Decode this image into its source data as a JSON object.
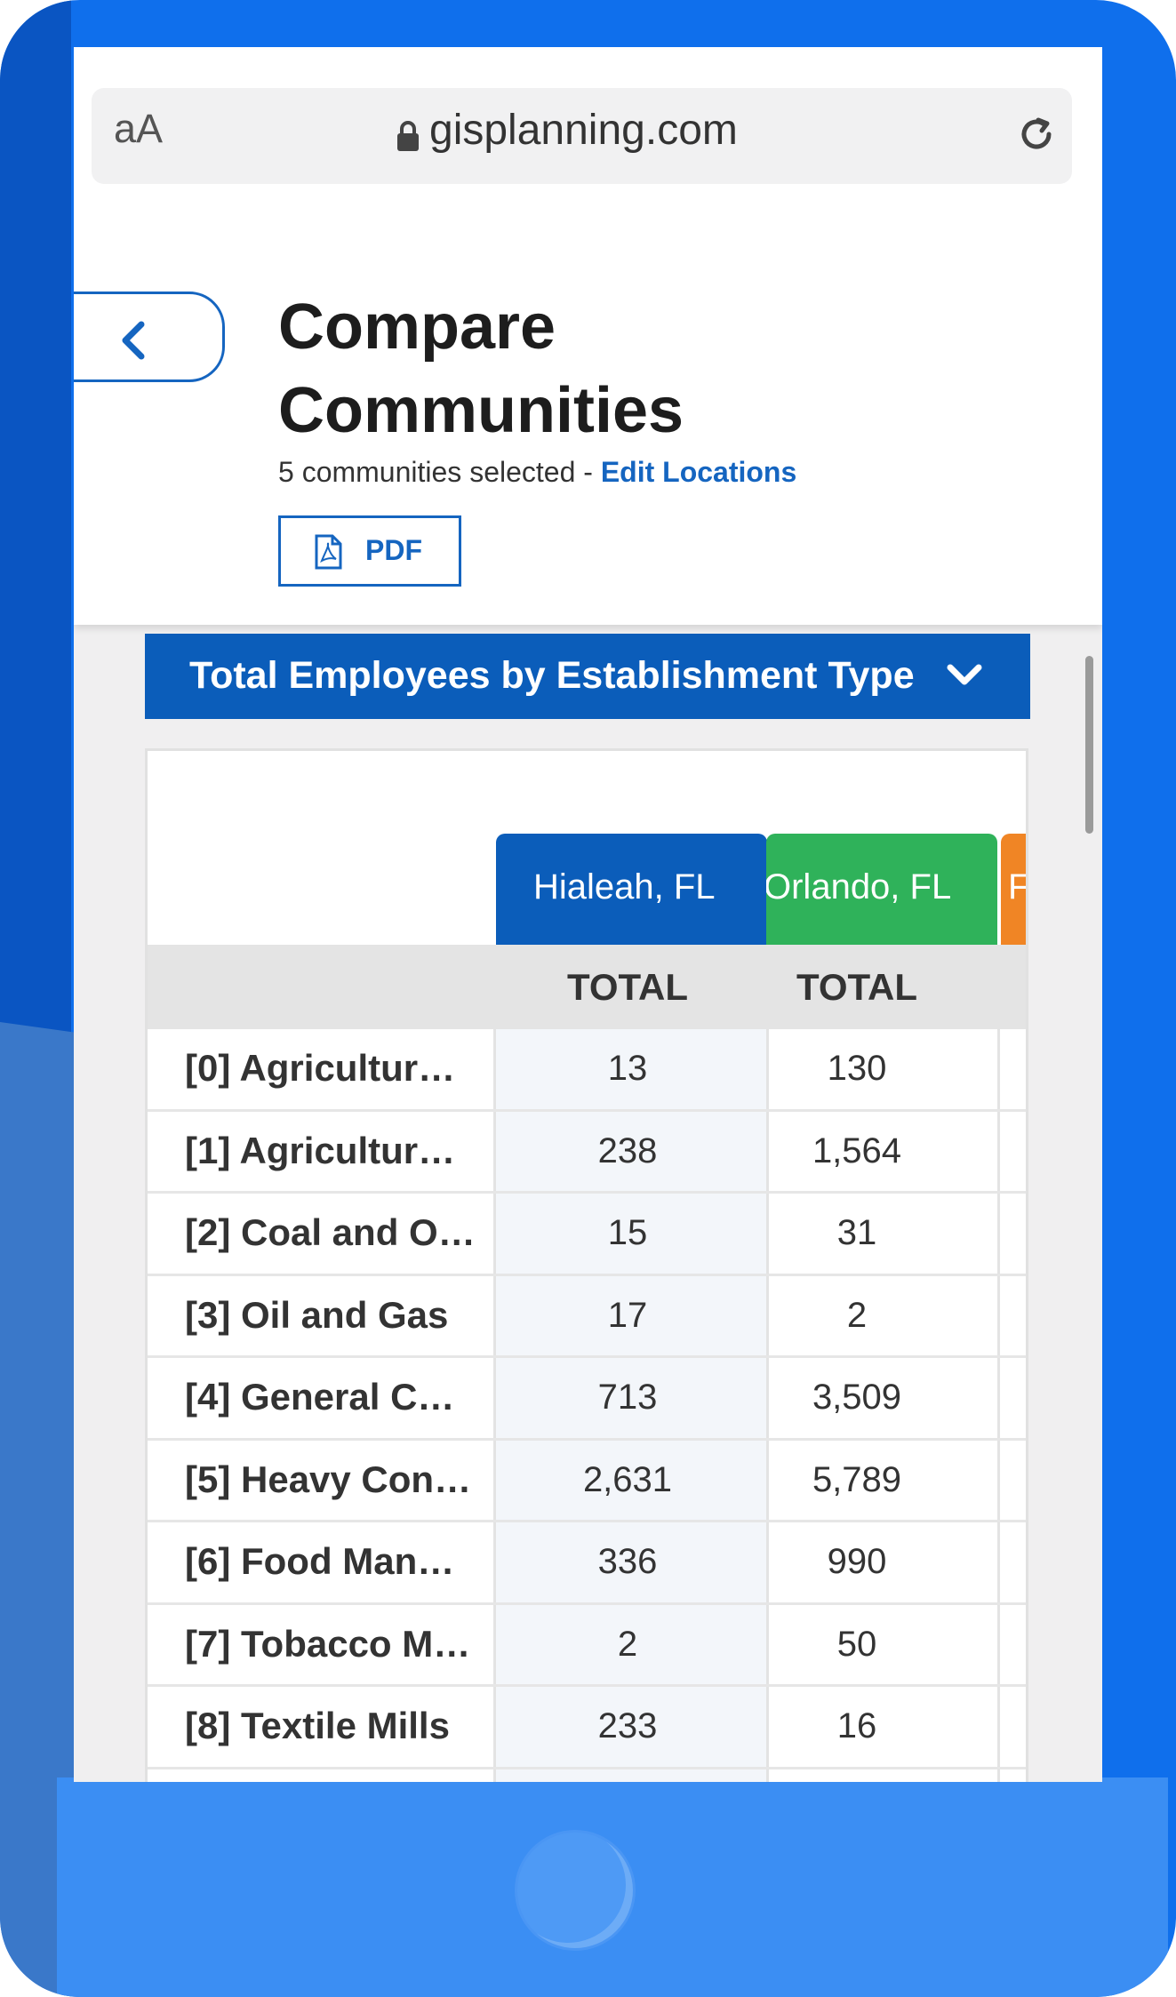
{
  "browser": {
    "text_size_label": "aA",
    "url": "gisplanning.com"
  },
  "page": {
    "title": "Compare Communities",
    "subtitle_prefix": "5 communities selected - ",
    "edit_locations_label": "Edit Locations",
    "pdf_label": "PDF"
  },
  "section": {
    "title": "Total Employees by Establishment Type"
  },
  "table": {
    "communities": [
      {
        "name": "Hialeah, FL",
        "color": "#0b5dba"
      },
      {
        "name": "Orlando, FL",
        "color": "#2fb25a"
      },
      {
        "name": "F",
        "color": "#f08525"
      }
    ],
    "column_header": "TOTAL",
    "rows": [
      {
        "label": "[0] Agricultur…",
        "values": [
          "13",
          "130"
        ]
      },
      {
        "label": "[1] Agricultur…",
        "values": [
          "238",
          "1,564"
        ]
      },
      {
        "label": "[2] Coal and O…",
        "values": [
          "15",
          "31"
        ]
      },
      {
        "label": "[3] Oil and Gas",
        "values": [
          "17",
          "2"
        ]
      },
      {
        "label": "[4] General C…",
        "values": [
          "713",
          "3,509"
        ]
      },
      {
        "label": "[5] Heavy Con…",
        "values": [
          "2,631",
          "5,789"
        ]
      },
      {
        "label": "[6] Food Man…",
        "values": [
          "336",
          "990"
        ]
      },
      {
        "label": "[7] Tobacco M…",
        "values": [
          "2",
          "50"
        ]
      },
      {
        "label": "[8] Textile Mills",
        "values": [
          "233",
          "16"
        ]
      }
    ]
  }
}
